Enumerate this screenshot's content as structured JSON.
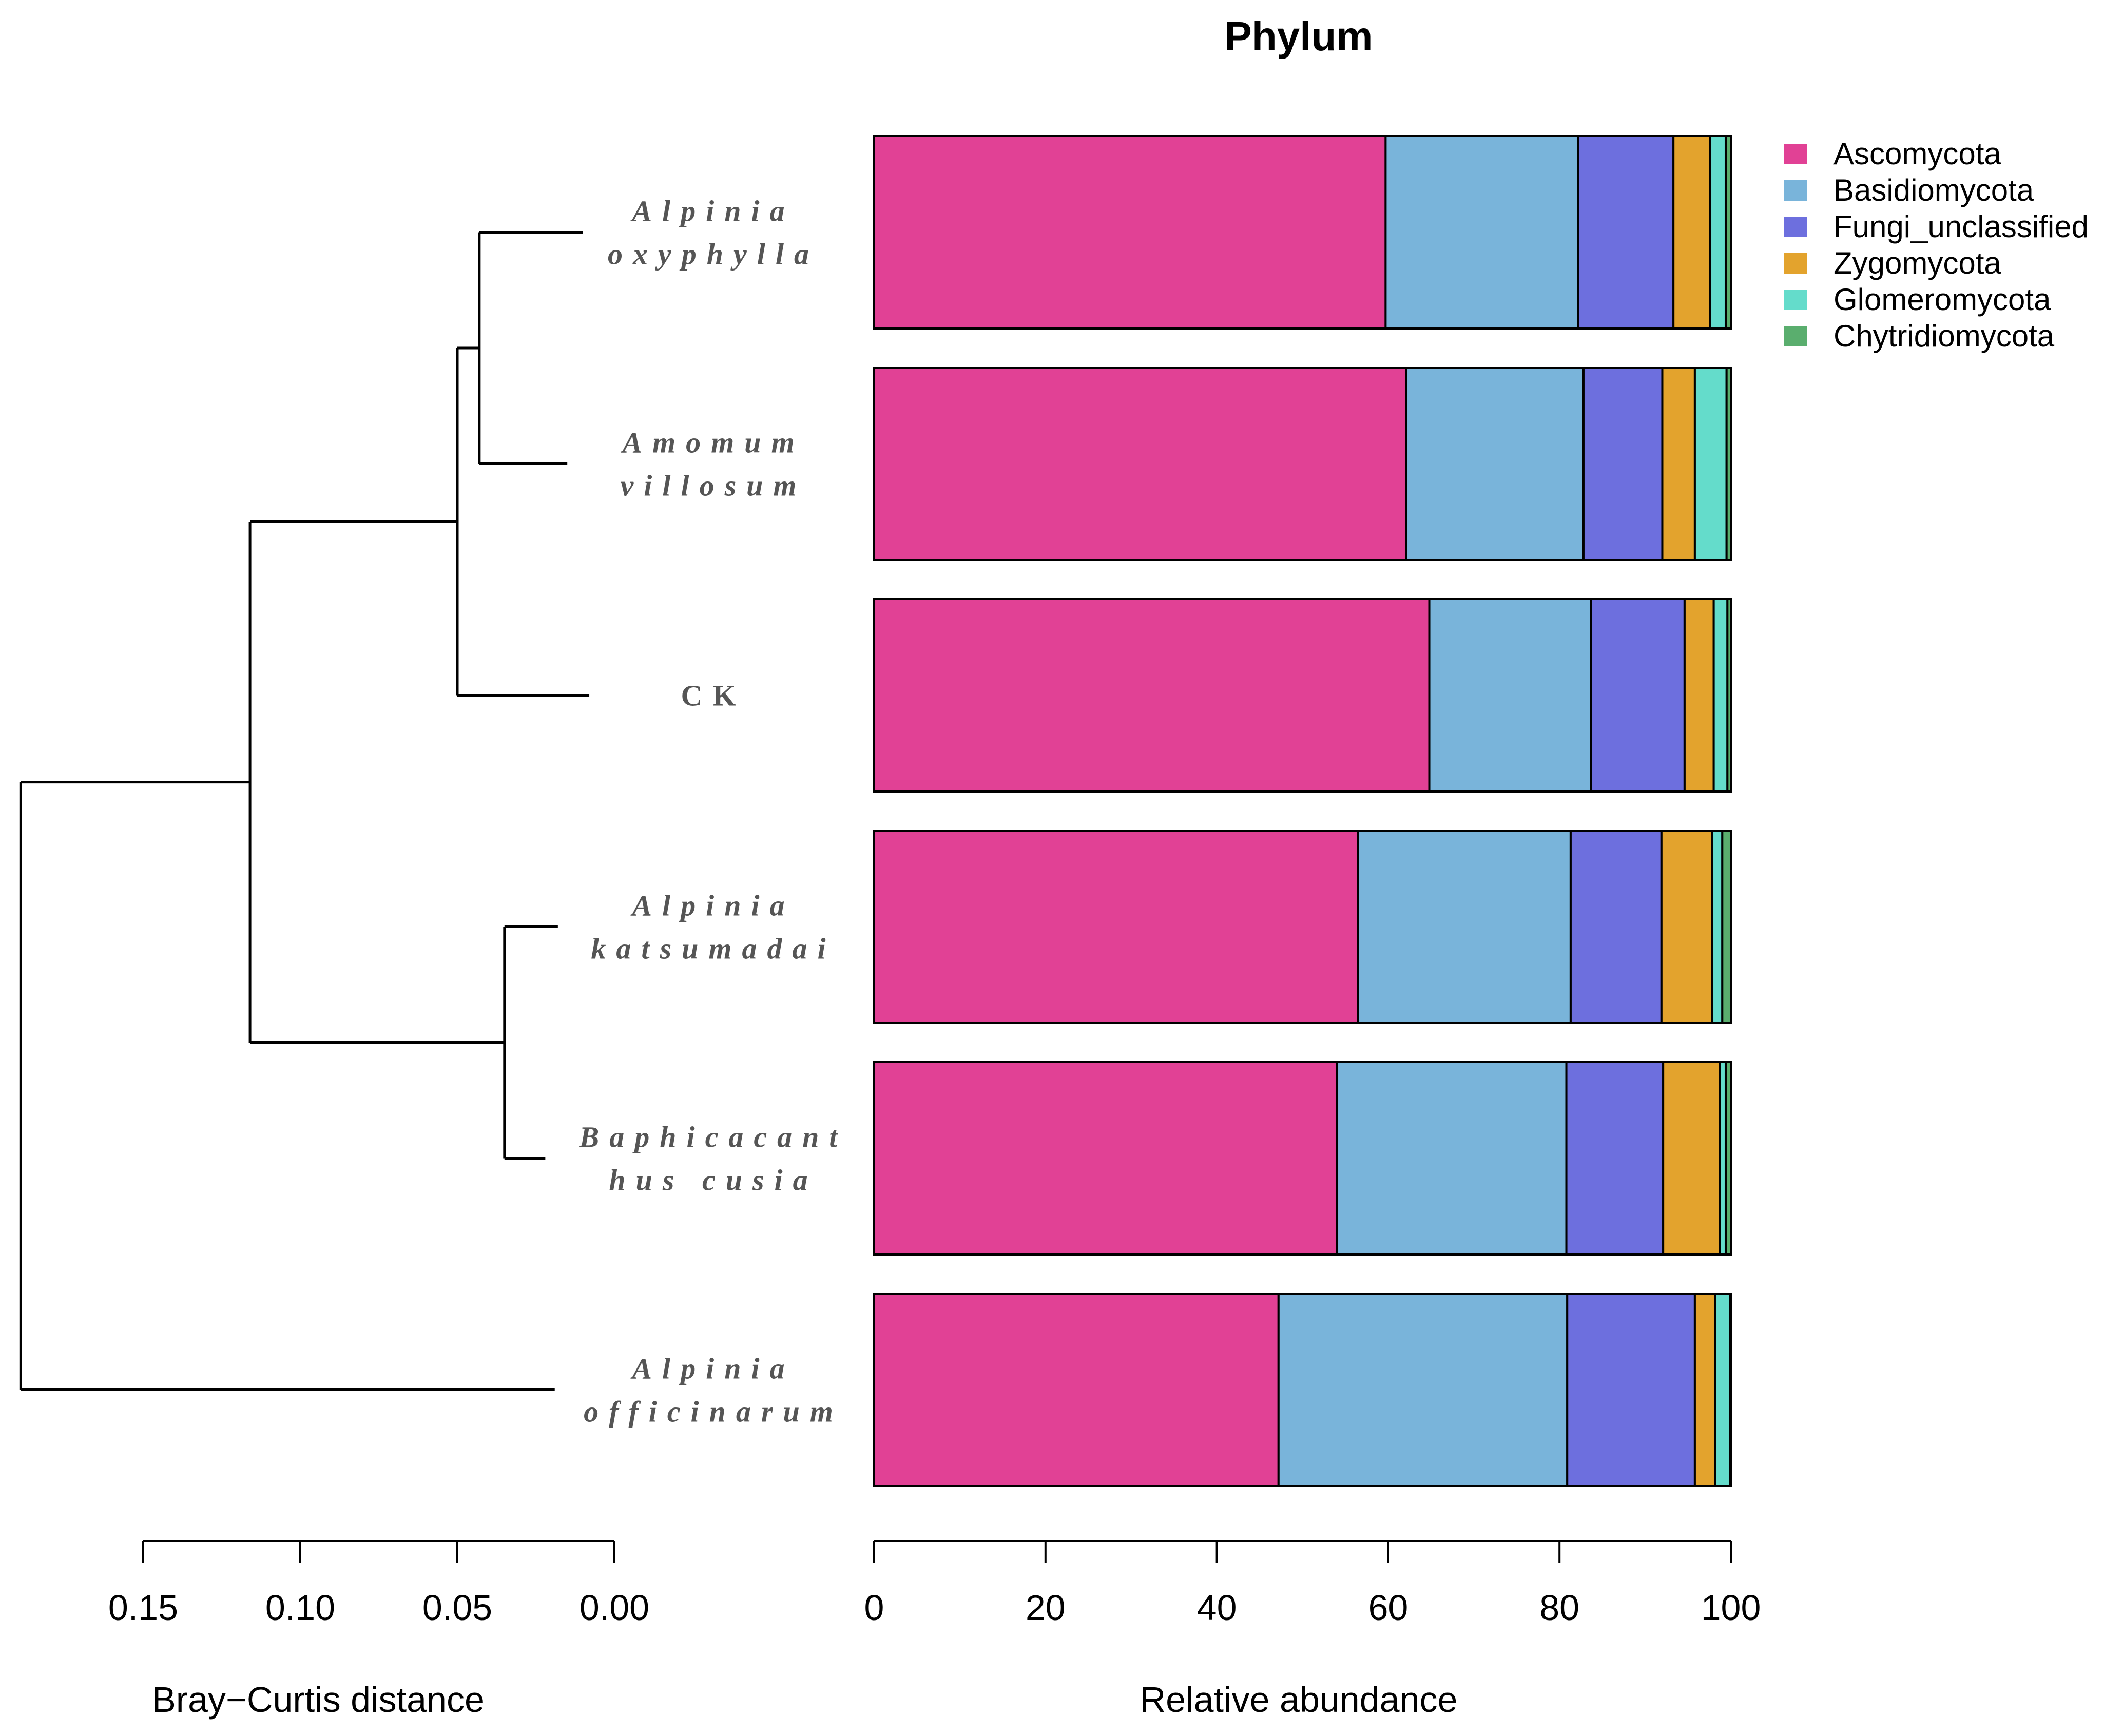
{
  "chart_data": {
    "type": "bar",
    "orientation": "horizontal",
    "stacked": true,
    "title": "Phylum",
    "xlabel": "Relative abundance",
    "xlim": [
      0,
      100
    ],
    "xticks": [
      0,
      20,
      40,
      60,
      80,
      100
    ],
    "samples": [
      {
        "id": "Alpinia oxyphylla",
        "lines": [
          "Alpinia",
          "oxyphylla"
        ],
        "italic": true
      },
      {
        "id": "Amomum villosum",
        "lines": [
          "Amomum",
          "villosum"
        ],
        "italic": true
      },
      {
        "id": "CK",
        "lines": [
          "CK"
        ],
        "italic": false
      },
      {
        "id": "Alpinia katsumadai",
        "lines": [
          "Alpinia",
          "katsumadai"
        ],
        "italic": true
      },
      {
        "id": "Baphicacanthus cusia",
        "lines": [
          "Baphicacant",
          "hus cusia"
        ],
        "italic": true
      },
      {
        "id": "Alpinia officinarum",
        "lines": [
          "Alpinia",
          "officinarum"
        ],
        "italic": true
      }
    ],
    "series": [
      {
        "name": "Ascomycota",
        "color": "#E14195",
        "values": [
          59.7,
          62.1,
          64.8,
          56.5,
          54.0,
          47.2
        ]
      },
      {
        "name": "Basidiomycota",
        "color": "#79B4DA",
        "values": [
          22.5,
          20.7,
          18.9,
          24.8,
          26.8,
          33.7
        ]
      },
      {
        "name": "Fungi_unclassified",
        "color": "#6D6FDE",
        "values": [
          11.1,
          9.2,
          10.9,
          10.6,
          11.3,
          14.9
        ]
      },
      {
        "name": "Zygomycota",
        "color": "#E3A32D",
        "values": [
          4.3,
          3.8,
          3.4,
          5.9,
          6.6,
          2.4
        ]
      },
      {
        "name": "Glomeromycota",
        "color": "#64DCCB",
        "values": [
          1.8,
          3.7,
          1.6,
          1.2,
          0.7,
          1.7
        ]
      },
      {
        "name": "Chytridiomycota",
        "color": "#5AAE6E",
        "values": [
          0.6,
          0.5,
          0.4,
          1.0,
          0.6,
          0.1
        ]
      }
    ],
    "dendrogram": {
      "xlabel": "Bray−Curtis distance",
      "xlim": [
        0.15,
        0.0
      ],
      "xticks": [
        0.15,
        0.1,
        0.05,
        0.0
      ],
      "xtick_labels": [
        "0.15",
        "0.10",
        "0.05",
        "0.00"
      ],
      "leaf_tips": [
        0.01,
        0.015,
        0.008,
        0.018,
        0.022,
        0.019
      ],
      "merges": [
        {
          "a": "L0",
          "b": "L1",
          "height": 0.043
        },
        {
          "a": "M0",
          "b": "L2",
          "height": 0.05
        },
        {
          "a": "L3",
          "b": "L4",
          "height": 0.035
        },
        {
          "a": "M1",
          "b": "M2",
          "height": 0.116
        },
        {
          "a": "M3",
          "b": "L5",
          "height": 0.189
        }
      ]
    }
  }
}
